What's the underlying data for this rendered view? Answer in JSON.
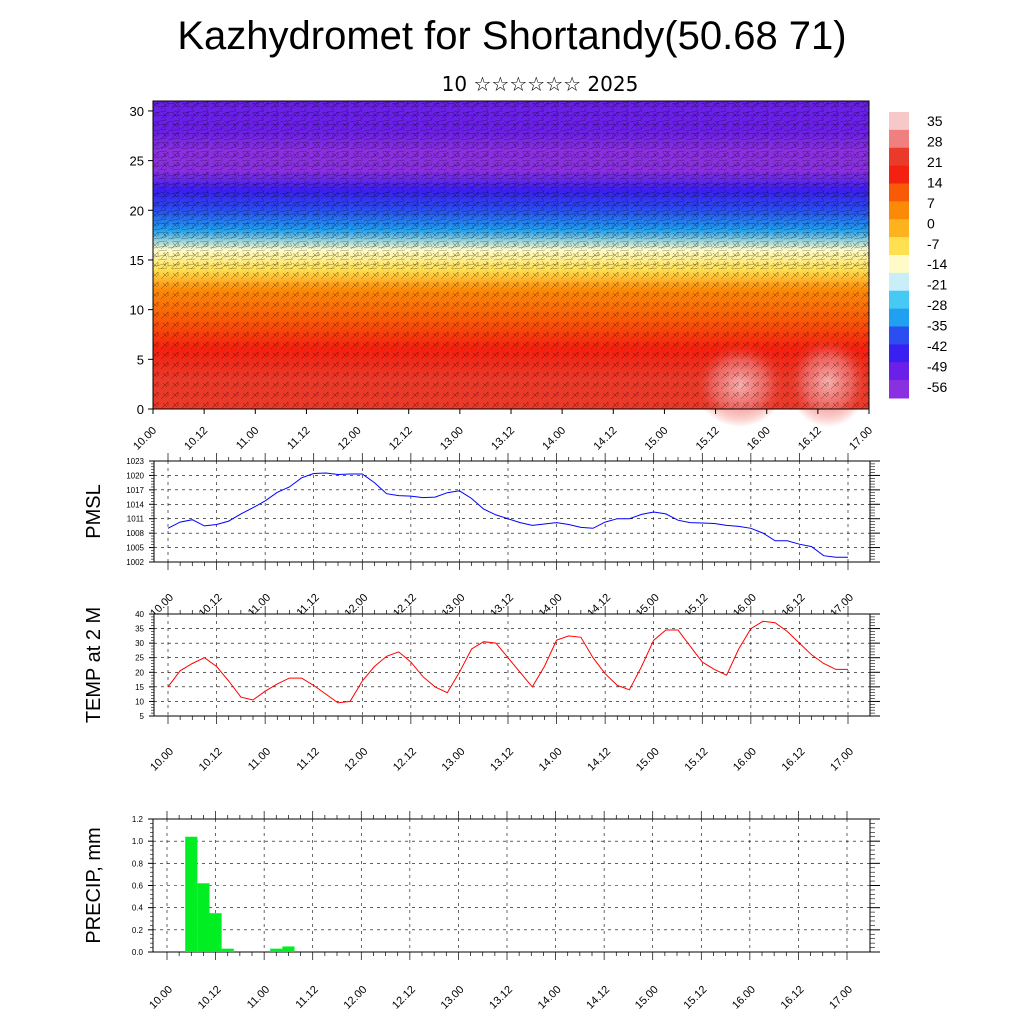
{
  "title": "Kazhydromet for Shortandy(50.68 71)",
  "subtitle": "10 ☆☆☆☆☆☆ 2025",
  "time_ticks": [
    "10.00",
    "10.12",
    "11.00",
    "11.12",
    "12.00",
    "12.12",
    "13.00",
    "13.12",
    "14.00",
    "14.12",
    "15.00",
    "15.12",
    "16.00",
    "16.12",
    "17.00"
  ],
  "chart_data": [
    {
      "type": "heatmap",
      "name": "cross-section",
      "x_ticks": [
        "10.00",
        "10.12",
        "11.00",
        "11.12",
        "12.00",
        "12.12",
        "13.00",
        "13.12",
        "14.00",
        "14.12",
        "15.00",
        "15.12",
        "16.00",
        "16.12",
        "17.00"
      ],
      "y_ticks": [
        0,
        5,
        10,
        15,
        20,
        25,
        30
      ],
      "ylim": [
        0,
        31
      ],
      "colorbar_labels": [
        35,
        28,
        21,
        14,
        7,
        0,
        -7,
        -14,
        -21,
        -28,
        -35,
        -42,
        -49,
        -56
      ],
      "colorbar_colors": [
        "#f6c8c8",
        "#f08080",
        "#ea3a2a",
        "#f42010",
        "#f85a08",
        "#fb8a08",
        "#fdb21e",
        "#ffe050",
        "#fffbc8",
        "#c8eef8",
        "#48c8f4",
        "#20a0f0",
        "#2a4ef0",
        "#3a20f0",
        "#6a20e8",
        "#8a30e0"
      ],
      "profile": [
        {
          "h": 0,
          "t": 23
        },
        {
          "h": 3,
          "t": 21
        },
        {
          "h": 6,
          "t": 16
        },
        {
          "h": 9,
          "t": 10
        },
        {
          "h": 12,
          "t": 2
        },
        {
          "h": 14,
          "t": -8
        },
        {
          "h": 16,
          "t": -16
        },
        {
          "h": 18,
          "t": -30
        },
        {
          "h": 20,
          "t": -38
        },
        {
          "h": 22,
          "t": -46
        },
        {
          "h": 24,
          "t": -54
        },
        {
          "h": 26,
          "t": -56
        },
        {
          "h": 28,
          "t": -52
        },
        {
          "h": 31,
          "t": -48
        }
      ]
    },
    {
      "type": "line",
      "ylabel": "PMSL",
      "ylim": [
        1002,
        1023
      ],
      "y_ticks": [
        1002,
        1005,
        1008,
        1011,
        1014,
        1017,
        1020,
        1023
      ],
      "color": "#0000ff",
      "x": [
        0,
        3,
        6,
        9,
        12,
        15,
        18,
        21,
        24,
        27,
        30,
        33,
        36,
        39,
        42,
        45,
        48,
        51,
        54,
        57,
        60,
        63,
        66,
        69,
        72,
        75,
        78,
        81,
        84,
        87,
        90,
        93,
        96,
        99,
        102,
        105,
        108,
        111,
        114,
        117,
        120,
        123,
        126,
        129,
        132,
        135,
        138,
        141,
        144,
        147,
        150,
        153,
        156,
        159,
        162,
        165,
        168
      ],
      "values": [
        1009,
        1010.3,
        1010.8,
        1009.5,
        1009.8,
        1010.5,
        1012,
        1013.3,
        1014.7,
        1016.5,
        1017.6,
        1019.5,
        1020.4,
        1020.5,
        1020.2,
        1020.3,
        1020.3,
        1018.5,
        1016.2,
        1015.8,
        1015.7,
        1015.4,
        1015.5,
        1016.4,
        1016.8,
        1015.2,
        1013,
        1011.8,
        1011,
        1010.2,
        1009.6,
        1009.9,
        1010.2,
        1009.8,
        1009.2,
        1009,
        1010.3,
        1011,
        1011,
        1011.9,
        1012.4,
        1012,
        1010.7,
        1010.2,
        1010.1,
        1010,
        1009.6,
        1009.4,
        1009,
        1008,
        1006.4,
        1006.4,
        1005.7,
        1005.2,
        1003.3,
        1003,
        1003
      ]
    },
    {
      "type": "line",
      "ylabel": "TEMP at 2 M",
      "ylim": [
        5,
        40
      ],
      "y_ticks": [
        5,
        10,
        15,
        20,
        25,
        30,
        35,
        40
      ],
      "color": "#ff0000",
      "x": [
        0,
        3,
        6,
        9,
        12,
        15,
        18,
        21,
        24,
        27,
        30,
        33,
        36,
        39,
        42,
        45,
        48,
        51,
        54,
        57,
        60,
        63,
        66,
        69,
        72,
        75,
        78,
        81,
        84,
        87,
        90,
        93,
        96,
        99,
        102,
        105,
        108,
        111,
        114,
        117,
        120,
        123,
        126,
        129,
        132,
        135,
        138,
        141,
        144,
        147,
        150,
        153,
        156,
        159,
        162,
        165,
        168
      ],
      "values": [
        15,
        20.5,
        23,
        25,
        22,
        17,
        11.5,
        10.5,
        13.5,
        16,
        18,
        18,
        15.5,
        12.5,
        9.5,
        10,
        17,
        22,
        25.5,
        27,
        23.5,
        18.5,
        15,
        13,
        20,
        28,
        30.5,
        30,
        25,
        20,
        15,
        22,
        31,
        32.5,
        32,
        25,
        19.5,
        15.5,
        14,
        22,
        31,
        34.5,
        34.5,
        29,
        23.5,
        21,
        19,
        28,
        35,
        37.5,
        37,
        34,
        30,
        26,
        23,
        21,
        21
      ]
    },
    {
      "type": "bar",
      "ylabel": "PRECIP, mm",
      "ylim": [
        0,
        1.2
      ],
      "y_ticks": [
        "0.0",
        "0.2",
        "0.4",
        "0.6",
        "0.8",
        "1.0",
        "1.2"
      ],
      "color": "#00ee22",
      "x": [
        6,
        9,
        12,
        15,
        27,
        30
      ],
      "values": [
        1.04,
        0.62,
        0.35,
        0.03,
        0.03,
        0.05
      ]
    }
  ]
}
